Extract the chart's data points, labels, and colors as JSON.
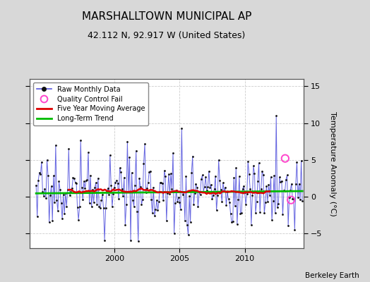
{
  "title": "MARSHALLTOWN MUNICIPAL AP",
  "subtitle": "42.112 N, 92.917 W (United States)",
  "ylabel": "Temperature Anomaly (°C)",
  "watermark": "Berkeley Earth",
  "xlim": [
    1993.5,
    2014.5
  ],
  "ylim": [
    -7,
    16
  ],
  "yticks": [
    -5,
    0,
    5,
    10,
    15
  ],
  "xticks": [
    2000,
    2005,
    2010
  ],
  "bg_color": "#d8d8d8",
  "plot_bg_color": "#ffffff",
  "raw_line_color": "#5555dd",
  "raw_dot_color": "#111111",
  "ma_color": "#dd0000",
  "trend_color": "#00bb00",
  "qc_fail_color": "#ff44cc",
  "title_fontsize": 11,
  "subtitle_fontsize": 9,
  "axis_fontsize": 8,
  "ylabel_fontsize": 8,
  "grid_color": "#cccccc",
  "seed": 17
}
